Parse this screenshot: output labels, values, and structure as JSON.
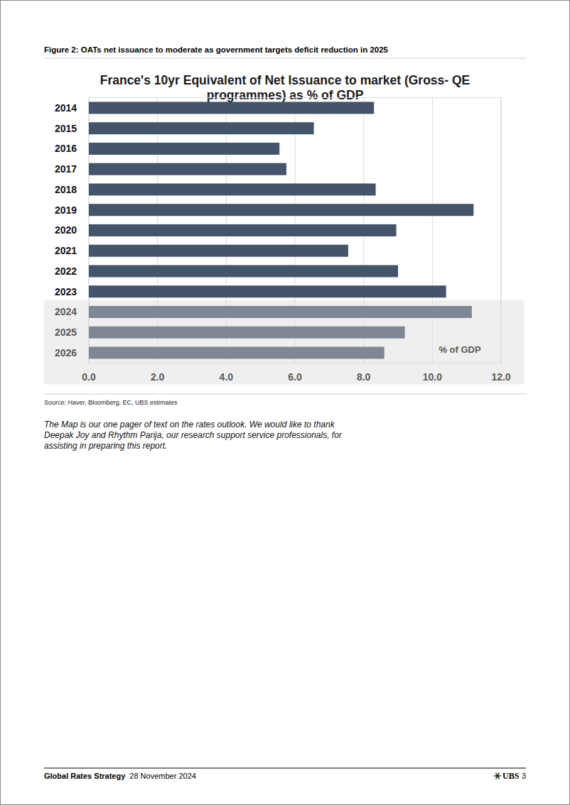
{
  "chart_data": {
    "type": "bar",
    "orientation": "horizontal",
    "title": "France's 10yr Equivalent of Net Issuance to market (Gross- QE programmes) as % of GDP",
    "categories": [
      "2014",
      "2015",
      "2016",
      "2017",
      "2018",
      "2019",
      "2020",
      "2021",
      "2022",
      "2023",
      "2024",
      "2025",
      "2026"
    ],
    "values": [
      8.3,
      6.55,
      5.55,
      5.75,
      8.35,
      11.2,
      8.95,
      7.55,
      9.0,
      10.4,
      11.15,
      9.2,
      8.6
    ],
    "colors": [
      "#44546a",
      "#44546a",
      "#44546a",
      "#44546a",
      "#44546a",
      "#44546a",
      "#44546a",
      "#44546a",
      "#44546a",
      "#44546a",
      "#7f8794",
      "#7f8794",
      "#7f8794"
    ],
    "xlabel": "% of GDP",
    "xlim": [
      0,
      12
    ],
    "xticks": [
      {
        "value": 0,
        "label": "0.0"
      },
      {
        "value": 2,
        "label": "2.0"
      },
      {
        "value": 4,
        "label": "4.0"
      },
      {
        "value": 6,
        "label": "6.0"
      },
      {
        "value": 8,
        "label": "8.0"
      },
      {
        "value": 10,
        "label": "10.0"
      },
      {
        "value": 12,
        "label": "12.0"
      }
    ],
    "grid": true
  },
  "page": {
    "caption": "Figure 2: OATs net issuance to moderate as government targets deficit reduction in 2025",
    "source": "Source: Haver, Bloomberg, EC, UBS estimates",
    "note": "The Map is our one pager of text on the rates outlook. We would like to thank Deepak Joy and Rhythm Parija, our research support service professionals, for assisting in preparing this report.",
    "footer_title": "Global Rates Strategy",
    "footer_date": "28 November 2024",
    "footer_brand": "UBS",
    "footer_page": "3"
  }
}
